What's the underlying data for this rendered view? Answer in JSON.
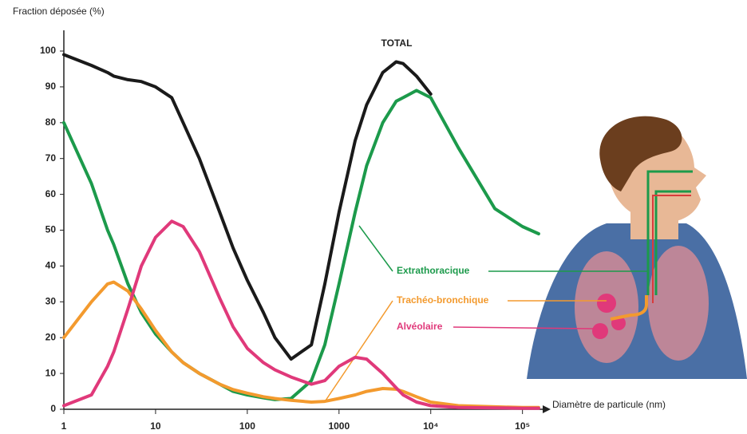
{
  "chart_data": {
    "type": "line",
    "y_label": "Fraction déposée (%)",
    "x_label": "Diamètre de particule (nm)",
    "annotation": "TOTAL",
    "log_x": true,
    "x": [
      1,
      2,
      3,
      3.5,
      5,
      7,
      10,
      15,
      20,
      30,
      50,
      70,
      100,
      150,
      200,
      300,
      500,
      700,
      1000,
      1500,
      2000,
      3000,
      4200,
      5000,
      7000,
      10000,
      20000,
      50000,
      100000,
      150000
    ],
    "series": [
      {
        "name": "TOTAL",
        "color": "#1a1a1a",
        "values": [
          99,
          96,
          94,
          93,
          92,
          91.5,
          90,
          87,
          80,
          70,
          55,
          45,
          36,
          27,
          20,
          14,
          18,
          35,
          55,
          75,
          85,
          94,
          97,
          96.5,
          93,
          88,
          null,
          null,
          null,
          null
        ]
      },
      {
        "name": "Extrathoracique",
        "color": "#1c9a4b",
        "values": [
          80,
          63,
          50,
          46,
          35,
          27,
          21,
          16,
          13,
          10,
          7,
          5,
          4,
          3.2,
          2.7,
          3,
          8,
          18,
          35,
          55,
          68,
          80,
          86,
          87,
          89,
          87,
          73,
          56,
          51,
          49
        ]
      },
      {
        "name": "Trachéo-bronchique",
        "color": "#f39a2e",
        "values": [
          20,
          30,
          35,
          35.5,
          33,
          28,
          22,
          16,
          13,
          10,
          7,
          5.5,
          4.5,
          3.5,
          3,
          2.5,
          2,
          2.2,
          3,
          4,
          5,
          5.8,
          5.6,
          5,
          3.5,
          2,
          1,
          0.7,
          0.5,
          0.5
        ]
      },
      {
        "name": "Alvéolaire",
        "color": "#e0397a",
        "values": [
          1,
          4,
          12,
          16,
          28,
          40,
          48,
          52.5,
          51,
          44,
          31,
          23,
          17,
          13,
          11,
          9,
          7,
          8,
          12,
          14.5,
          14,
          10,
          6,
          4,
          2,
          1,
          0.5,
          0.4,
          0.3,
          0.3
        ]
      }
    ],
    "xlim": [
      1,
      180000
    ],
    "ylim": [
      0,
      100
    ],
    "xticks": [
      1,
      10,
      100,
      1000,
      {
        "value": 10000,
        "label": "10⁴"
      },
      {
        "value": 100000,
        "label": "10⁵"
      }
    ],
    "yticks": [
      0,
      10,
      20,
      30,
      40,
      50,
      60,
      70,
      80,
      90,
      100
    ],
    "grid": false
  }
}
